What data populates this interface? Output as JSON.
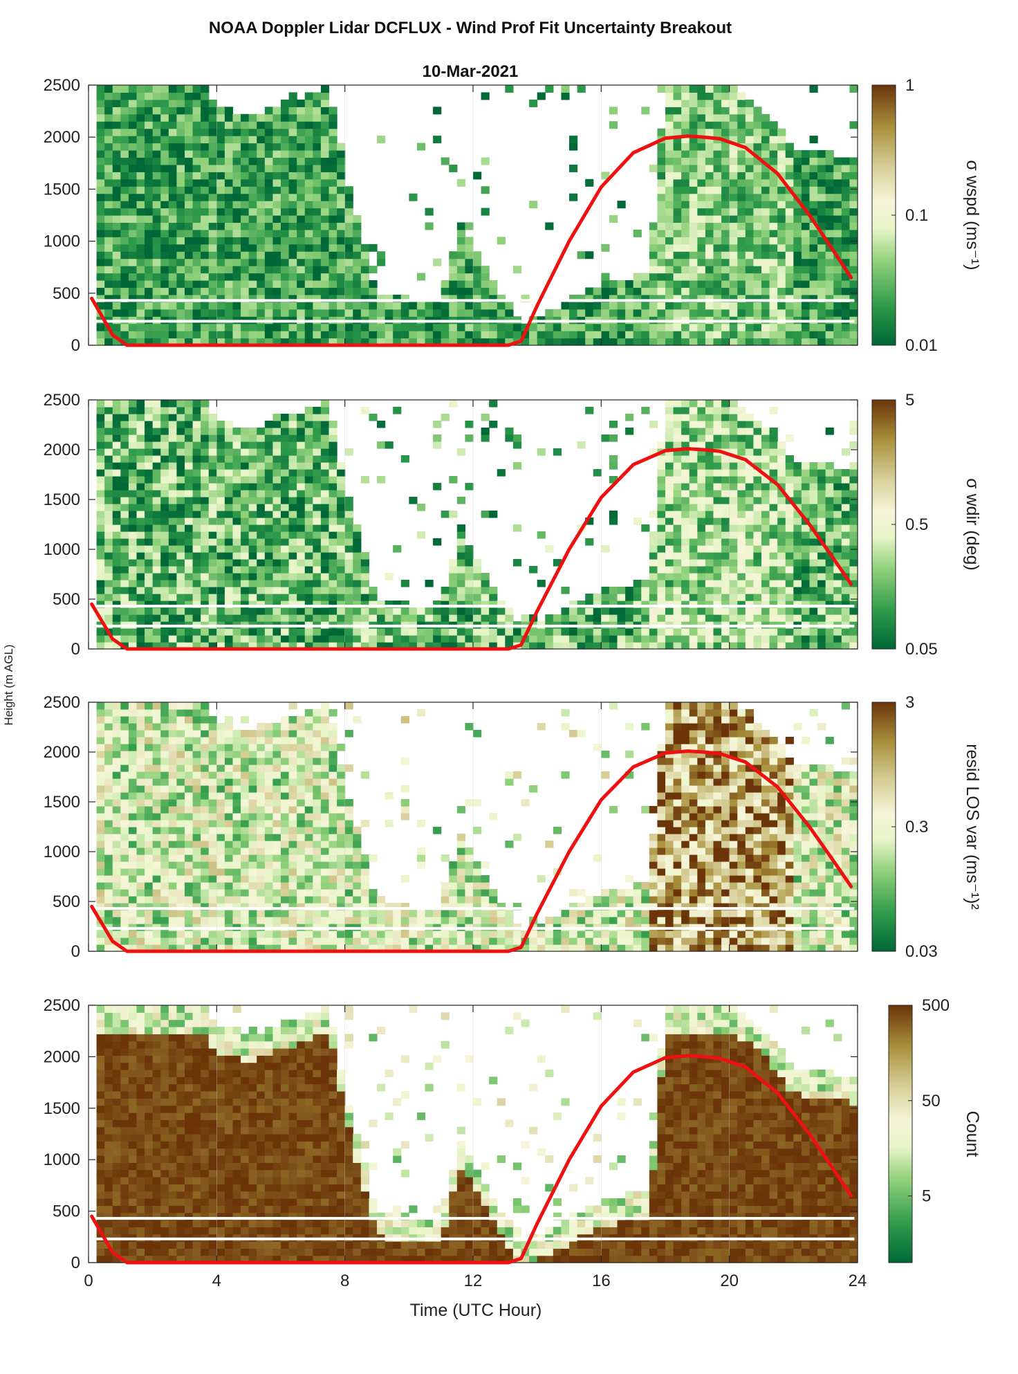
{
  "figure": {
    "title": "NOAA Doppler Lidar DCFLUX - Wind Prof Fit Uncertainty Breakout",
    "subtitle": "10-Mar-2021",
    "ylabel": "Height (m AGL)",
    "xlabel": "Time (UTC Hour)"
  },
  "colormap": {
    "low": "#006837",
    "mid": "#f5f5d8",
    "high": "#6b3409",
    "description_stops": [
      "#006837",
      "#2e9a4a",
      "#8fd07a",
      "#e8f5c8",
      "#f5f5d8",
      "#d8d09a",
      "#a8903c",
      "#6b3409"
    ]
  },
  "chart_data": [
    {
      "type": "heatmap",
      "name": "sigma-wspd",
      "colorbar_label": "σ wspd (ms⁻¹)",
      "clim": [
        0.01,
        1
      ],
      "log_scale": true,
      "colorbar_ticks": [
        "0.01",
        "0.1",
        "1"
      ],
      "xlim": [
        0,
        24
      ],
      "ylim": [
        0,
        2500
      ],
      "x_ticks": [
        "0",
        "4",
        "8",
        "12",
        "16",
        "20",
        "24"
      ],
      "y_ticks": [
        "0",
        "500",
        "1000",
        "1500",
        "2000",
        "2500"
      ],
      "grid": true,
      "base_fraction": 0.15,
      "spread": 0.2
    },
    {
      "type": "heatmap",
      "name": "sigma-wdir",
      "colorbar_label": "σ wdir (deg)",
      "clim": [
        0.05,
        5
      ],
      "log_scale": true,
      "colorbar_ticks": [
        "0.05",
        "0.5",
        "5"
      ],
      "xlim": [
        0,
        24
      ],
      "ylim": [
        0,
        2500
      ],
      "x_ticks": [
        "0",
        "4",
        "8",
        "12",
        "16",
        "20",
        "24"
      ],
      "y_ticks": [
        "0",
        "500",
        "1000",
        "1500",
        "2000",
        "2500"
      ],
      "grid": true,
      "base_fraction": 0.22,
      "spread": 0.25
    },
    {
      "type": "heatmap",
      "name": "resid-los-var",
      "colorbar_label": "resid LOS var (ms⁻¹)²",
      "clim": [
        0.03,
        3
      ],
      "log_scale": true,
      "colorbar_ticks": [
        "0.03",
        "0.3",
        "3"
      ],
      "xlim": [
        0,
        24
      ],
      "ylim": [
        0,
        2500
      ],
      "x_ticks": [
        "0",
        "4",
        "8",
        "12",
        "16",
        "20",
        "24"
      ],
      "y_ticks": [
        "0",
        "500",
        "1000",
        "1500",
        "2000",
        "2500"
      ],
      "grid": true,
      "base_fraction": 0.45,
      "spread": 0.3
    },
    {
      "type": "heatmap",
      "name": "count",
      "colorbar_label": "Count",
      "clim": [
        1,
        500
      ],
      "log_scale": true,
      "colorbar_ticks": [
        "5",
        "50",
        "500"
      ],
      "xlim": [
        0,
        24
      ],
      "ylim": [
        0,
        2500
      ],
      "x_ticks": [
        "0",
        "4",
        "8",
        "12",
        "16",
        "20",
        "24"
      ],
      "y_ticks": [
        "0",
        "500",
        "1000",
        "1500",
        "2000",
        "2500"
      ],
      "grid": true,
      "base_fraction": 0.97,
      "spread": 0.05
    }
  ],
  "data_coverage_top_m": {
    "hours": [
      0.2,
      2,
      3.6,
      4,
      5,
      7.5,
      8,
      8.5,
      9,
      10,
      11,
      11.6,
      12,
      13,
      13.5,
      16,
      17.5,
      18,
      19,
      20,
      21,
      22,
      23.9
    ],
    "heights": [
      2500,
      2500,
      2500,
      2300,
      2200,
      2500,
      1700,
      1100,
      500,
      450,
      450,
      1200,
      1000,
      450,
      200,
      600,
      700,
      2500,
      2500,
      2500,
      2300,
      1900,
      1800
    ]
  },
  "overlay_line": {
    "color": "#ee1111",
    "x": [
      0.1,
      0.75,
      1.2,
      13.1,
      13.5,
      14.0,
      15.0,
      16.0,
      17.0,
      18.0,
      18.7,
      19.2,
      19.7,
      20.5,
      21.5,
      22.5,
      23.2,
      23.8
    ],
    "y": [
      450,
      100,
      0,
      0,
      40,
      380,
      1000,
      1520,
      1850,
      1990,
      2010,
      2000,
      1985,
      1900,
      1650,
      1250,
      930,
      650
    ]
  },
  "white_lines_m": [
    430,
    230
  ]
}
